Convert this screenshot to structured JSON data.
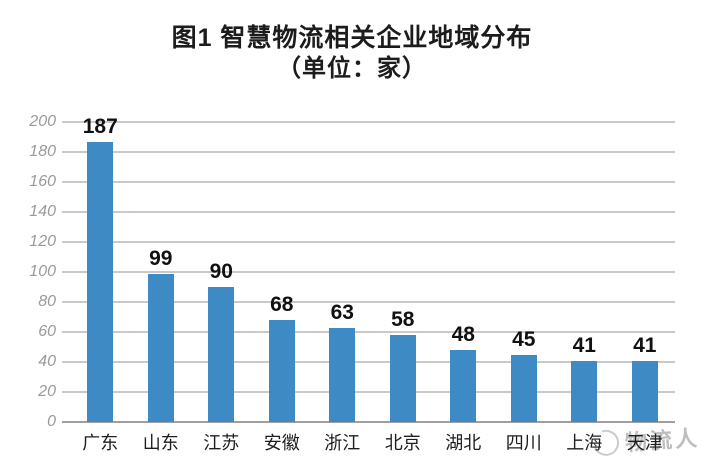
{
  "figure": {
    "title": "图1 智慧物流相关企业地域分布",
    "subtitle": "（单位：家）"
  },
  "watermark": {
    "text": "物流人",
    "logo_icon": "swoosh-circle-icon",
    "color": "#9c9c9c"
  },
  "chart_data": {
    "type": "bar",
    "title": "图1 智慧物流相关企业地域分布",
    "subtitle": "（单位：家）",
    "categories": [
      "广东",
      "山东",
      "江苏",
      "安徽",
      "浙江",
      "北京",
      "湖北",
      "四川",
      "上海",
      "天津"
    ],
    "values": [
      187,
      99,
      90,
      68,
      63,
      58,
      48,
      45,
      41,
      41
    ],
    "xlabel": "",
    "ylabel": "",
    "ylim": [
      0,
      200
    ],
    "yticks": [
      0,
      20,
      40,
      60,
      80,
      100,
      120,
      140,
      160,
      180,
      200
    ],
    "grid": true,
    "legend": false,
    "value_labels": true,
    "bar_color": "#3e8ac5",
    "gridline_color": "#c9c9c9",
    "axis_line_color": "#9f9f9f",
    "tick_label_color": "#9a9a9a"
  }
}
